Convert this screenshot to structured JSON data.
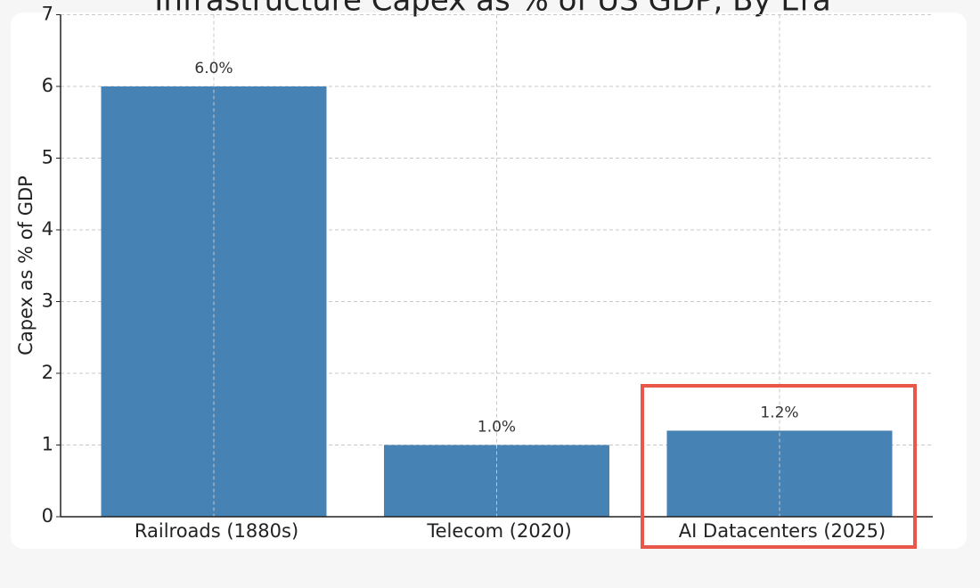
{
  "chart_data": {
    "type": "bar",
    "title": "Infrastructure Capex as % of US GDP, By Era",
    "y_label": "Capex as % of GDP",
    "categories": [
      "Railroads (1880s)",
      "Telecom (2020)",
      "AI Datacenters (2025)"
    ],
    "values": [
      6.0,
      1.0,
      1.2
    ],
    "value_labels": [
      "6.0%",
      "1.0%",
      "1.2%"
    ],
    "color": "#4682b4",
    "ylim": [
      0,
      7
    ],
    "yticks": [
      0,
      1,
      2,
      3,
      4,
      5,
      6,
      7
    ],
    "grid": true
  }
}
